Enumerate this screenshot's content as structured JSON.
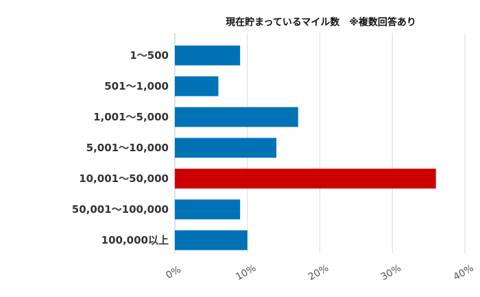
{
  "chart_data": {
    "type": "bar",
    "orientation": "horizontal",
    "title": "現在貯まっているマイル数　※複数回答あり",
    "categories": [
      "1～500",
      "501～1,000",
      "1,001～5,000",
      "5,001～10,000",
      "10,001～50,000",
      "50,001～100,000",
      "100,000以上"
    ],
    "values": [
      9,
      6,
      17,
      14,
      36,
      9,
      10
    ],
    "xlim": [
      0,
      40
    ],
    "xticks": [
      0,
      10,
      20,
      30,
      40
    ],
    "xtick_labels": [
      "0%",
      "10%",
      "20%",
      "30%",
      "40%"
    ],
    "grid": true,
    "bar_color": "#0073b7",
    "highlight_color": "#cc0000",
    "highlight_index": 4
  }
}
